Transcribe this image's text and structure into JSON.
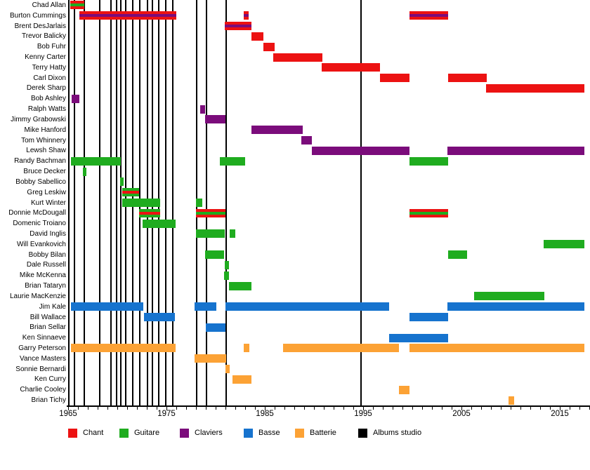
{
  "chart_data": {
    "type": "bar",
    "variant": "gantt-membership-timeline",
    "title": "",
    "x_axis": {
      "min": 1965,
      "max": 2018,
      "major_ticks": [
        1965,
        1975,
        1985,
        1995,
        2005,
        2015
      ],
      "minor_tick_interval": 1,
      "grid": false
    },
    "timeline_end": 2017.5,
    "role_colors": {
      "chant": "#EC1212",
      "guitare": "#1FAC1F",
      "claviers": "#7B0C7B",
      "basse": "#1673CE",
      "batterie": "#FCA235",
      "albums": "#000000"
    },
    "legend": [
      {
        "key": "chant",
        "label": "Chant"
      },
      {
        "key": "guitare",
        "label": "Guitare"
      },
      {
        "key": "claviers",
        "label": "Claviers"
      },
      {
        "key": "basse",
        "label": "Basse"
      },
      {
        "key": "batterie",
        "label": "Batterie"
      },
      {
        "key": "albums",
        "label": "Albums studio"
      }
    ],
    "album_lines_years": [
      1965.05,
      1965.65,
      1966.65,
      1968.2,
      1969.35,
      1969.9,
      1970.35,
      1970.85,
      1971.55,
      1972.3,
      1973.05,
      1973.55,
      1974.2,
      1974.9,
      1975.65,
      1978.05,
      1979.05,
      1981.05,
      1994.8
    ],
    "rows": [
      {
        "name": "Chad Allan",
        "segments": [
          {
            "start": 1965.2,
            "end": 1966.65,
            "role": "chant",
            "stripe": "guitare"
          }
        ]
      },
      {
        "name": "Burton Cummings",
        "segments": [
          {
            "start": 1966.15,
            "end": 1976.0,
            "role": "chant",
            "stripe": "claviers"
          },
          {
            "start": 1982.85,
            "end": 1983.35,
            "role": "chant",
            "stripe": "claviers"
          },
          {
            "start": 1999.7,
            "end": 2003.65,
            "role": "chant",
            "stripe": "claviers"
          }
        ]
      },
      {
        "name": "Brent DesJarlais",
        "segments": [
          {
            "start": 1980.95,
            "end": 1983.65,
            "role": "chant",
            "stripe": "claviers"
          }
        ]
      },
      {
        "name": "Trevor Balicky",
        "segments": [
          {
            "start": 1983.65,
            "end": 1984.85,
            "role": "chant"
          }
        ]
      },
      {
        "name": "Bob Fuhr",
        "segments": [
          {
            "start": 1984.85,
            "end": 1986.0,
            "role": "chant"
          }
        ]
      },
      {
        "name": "Kenny Carter",
        "segments": [
          {
            "start": 1985.85,
            "end": 1990.85,
            "role": "chant"
          }
        ]
      },
      {
        "name": "Terry Hatty",
        "segments": [
          {
            "start": 1990.8,
            "end": 1996.7,
            "role": "chant"
          }
        ]
      },
      {
        "name": "Carl Dixon",
        "segments": [
          {
            "start": 1996.7,
            "end": 1999.7,
            "role": "chant"
          },
          {
            "start": 2003.65,
            "end": 2007.55,
            "role": "chant"
          }
        ]
      },
      {
        "name": "Derek Sharp",
        "segments": [
          {
            "start": 2007.5,
            "end": 2017.5,
            "role": "chant"
          }
        ]
      },
      {
        "name": "Bob Ashley",
        "segments": [
          {
            "start": 1965.35,
            "end": 1966.15,
            "role": "claviers"
          }
        ]
      },
      {
        "name": "Ralph Watts",
        "segments": [
          {
            "start": 1978.45,
            "end": 1978.95,
            "role": "claviers"
          }
        ]
      },
      {
        "name": "Jimmy Grabowski",
        "segments": [
          {
            "start": 1978.95,
            "end": 1981.0,
            "role": "claviers"
          }
        ]
      },
      {
        "name": "Mike Hanford",
        "segments": [
          {
            "start": 1983.65,
            "end": 1988.85,
            "role": "claviers"
          }
        ]
      },
      {
        "name": "Tom Whinnery",
        "segments": [
          {
            "start": 1988.7,
            "end": 1989.8,
            "role": "claviers"
          }
        ]
      },
      {
        "name": "Lewsh Shaw",
        "segments": [
          {
            "start": 1989.8,
            "end": 1999.7,
            "role": "claviers"
          },
          {
            "start": 2003.55,
            "end": 2017.5,
            "role": "claviers"
          }
        ]
      },
      {
        "name": "Randy Bachman",
        "segments": [
          {
            "start": 1965.3,
            "end": 1970.35,
            "role": "guitare"
          },
          {
            "start": 1980.45,
            "end": 1983.0,
            "role": "guitare"
          },
          {
            "start": 1999.7,
            "end": 2003.65,
            "role": "guitare"
          }
        ]
      },
      {
        "name": "Bruce Decker",
        "segments": [
          {
            "start": 1966.5,
            "end": 1966.85,
            "role": "guitare"
          }
        ]
      },
      {
        "name": "Bobby Sabellico",
        "segments": [
          {
            "start": 1970.3,
            "end": 1970.65,
            "role": "guitare"
          }
        ]
      },
      {
        "name": "Greg Leskiw",
        "segments": [
          {
            "start": 1970.5,
            "end": 1972.2,
            "role": "guitare",
            "stripe": "chant"
          }
        ]
      },
      {
        "name": "Kurt Winter",
        "segments": [
          {
            "start": 1970.5,
            "end": 1974.35,
            "role": "guitare"
          },
          {
            "start": 1978.0,
            "end": 1978.65,
            "role": "guitare"
          }
        ]
      },
      {
        "name": "Donnie McDougall",
        "segments": [
          {
            "start": 1972.2,
            "end": 1974.35,
            "role": "guitare",
            "stripe": "chant"
          },
          {
            "start": 1978.0,
            "end": 1981.0,
            "role": "chant",
            "stripe": "guitare"
          },
          {
            "start": 1999.7,
            "end": 2003.65,
            "role": "chant",
            "stripe": "guitare"
          }
        ]
      },
      {
        "name": "Domenic Troiano",
        "segments": [
          {
            "start": 1972.55,
            "end": 1975.95,
            "role": "guitare"
          }
        ]
      },
      {
        "name": "David Inglis",
        "segments": [
          {
            "start": 1978.0,
            "end": 1980.95,
            "role": "guitare"
          },
          {
            "start": 1981.45,
            "end": 1982.0,
            "role": "guitare"
          }
        ]
      },
      {
        "name": "Will Evankovich",
        "segments": [
          {
            "start": 2013.35,
            "end": 2017.5,
            "role": "guitare"
          }
        ]
      },
      {
        "name": "Bobby Bilan",
        "segments": [
          {
            "start": 1978.95,
            "end": 1980.85,
            "role": "guitare"
          },
          {
            "start": 2003.65,
            "end": 2005.55,
            "role": "guitare"
          }
        ]
      },
      {
        "name": "Dale Russell",
        "segments": [
          {
            "start": 1980.95,
            "end": 1981.35,
            "role": "guitare"
          }
        ]
      },
      {
        "name": "Mike McKenna",
        "segments": [
          {
            "start": 1980.85,
            "end": 1981.35,
            "role": "guitare"
          }
        ]
      },
      {
        "name": "Brian Tataryn",
        "segments": [
          {
            "start": 1981.35,
            "end": 1983.65,
            "role": "guitare"
          }
        ]
      },
      {
        "name": "Laurie MacKenzie",
        "segments": [
          {
            "start": 2006.3,
            "end": 2013.45,
            "role": "guitare"
          }
        ]
      },
      {
        "name": "Jim Kale",
        "segments": [
          {
            "start": 1965.3,
            "end": 1972.65,
            "role": "basse"
          },
          {
            "start": 1977.85,
            "end": 1980.05,
            "role": "basse"
          },
          {
            "start": 1981.0,
            "end": 1997.65,
            "role": "basse"
          },
          {
            "start": 2003.55,
            "end": 2017.5,
            "role": "basse"
          }
        ]
      },
      {
        "name": "Bill Wallace",
        "segments": [
          {
            "start": 1972.7,
            "end": 1975.85,
            "role": "basse"
          },
          {
            "start": 1999.7,
            "end": 2003.65,
            "role": "basse"
          }
        ]
      },
      {
        "name": "Brian Sellar",
        "segments": [
          {
            "start": 1979.0,
            "end": 1981.0,
            "role": "basse"
          }
        ]
      },
      {
        "name": "Ken Sinnaeve",
        "segments": [
          {
            "start": 1997.65,
            "end": 2003.65,
            "role": "basse"
          }
        ]
      },
      {
        "name": "Garry Peterson",
        "segments": [
          {
            "start": 1965.3,
            "end": 1975.95,
            "role": "batterie"
          },
          {
            "start": 1982.85,
            "end": 1983.45,
            "role": "batterie"
          },
          {
            "start": 1986.85,
            "end": 1998.65,
            "role": "batterie"
          },
          {
            "start": 1999.7,
            "end": 2017.5,
            "role": "batterie"
          }
        ]
      },
      {
        "name": "Vance Masters",
        "segments": [
          {
            "start": 1977.85,
            "end": 1981.05,
            "role": "batterie"
          }
        ]
      },
      {
        "name": "Sonnie Bernardi",
        "segments": [
          {
            "start": 1981.0,
            "end": 1981.45,
            "role": "batterie"
          }
        ]
      },
      {
        "name": "Ken Curry",
        "segments": [
          {
            "start": 1981.7,
            "end": 1983.65,
            "role": "batterie"
          }
        ]
      },
      {
        "name": "Charlie Cooley",
        "segments": [
          {
            "start": 1998.65,
            "end": 1999.7,
            "role": "batterie"
          }
        ]
      },
      {
        "name": "Brian Tichy",
        "segments": [
          {
            "start": 2009.8,
            "end": 2010.35,
            "role": "batterie"
          }
        ]
      }
    ]
  }
}
